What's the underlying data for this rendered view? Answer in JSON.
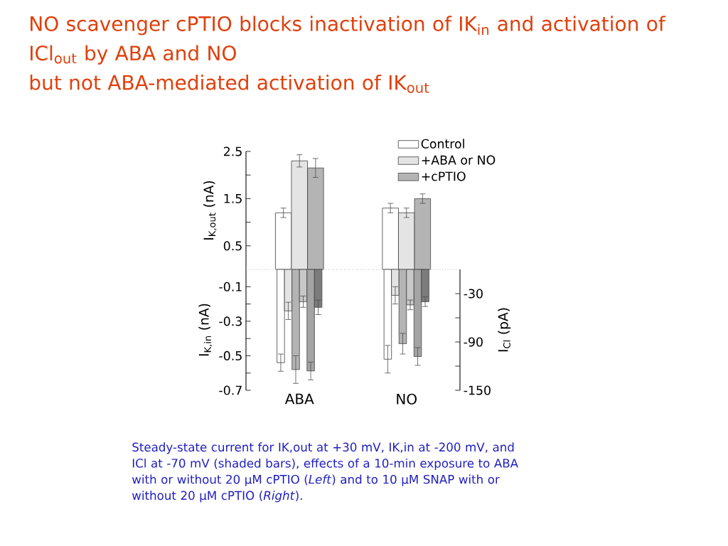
{
  "chart_data": [
    {
      "type": "bar",
      "title": "NO scavenger cPTIO blocks inactivation of IK$_{in}$ and activation of ICl$_{out}$ by ABA and NO",
      "subtitle": "but not ABA-mediated activation of IK$_{out}$",
      "annotations": [
        "Steady-state current for IK,out at +30 mV, IK,in at -200 mV, and ICl at -70 mV (shaded bars), effects of a 10-min exposure to ABA with or without 20 μM cPTIO (*Left*) and to 10 μM SNAP with or without 20 μM cPTIO (*Right*)."
      ],
      "categories": [
        null,
        null
      ],
      "tick_labels": "y",
      "ylabel": "I$_{K,out}$ (nA)",
      "ylim": [
        0,
        2.5
      ],
      "yticks": [
        0.5,
        {
          "value": 1.0,
          "label": null
        },
        1.5,
        {
          "value": 2.0,
          "label": null
        },
        2.5
      ],
      "legend": "top right",
      "series": [
        {
          "name": "Control",
          "color": "#ffffff",
          "values": [
            1.2,
            1.3
          ],
          "errors": [
            0.1,
            0.1
          ]
        },
        {
          "name": "+ABA or NO",
          "color": "#e4e4e4",
          "values": [
            2.3,
            1.2
          ],
          "errors": [
            0.13,
            0.1
          ]
        },
        {
          "name": "+cPTIO",
          "color": "#b4b4b4",
          "values": [
            2.15,
            1.5
          ],
          "errors": [
            0.2,
            0.1
          ]
        }
      ]
    },
    {
      "type": "bar",
      "categories": [
        "ABA",
        "NO"
      ],
      "ylabel": "I$_{K,in}$ (nA)",
      "y2label": "I$_{Cl}$ (pA)",
      "ylim": [
        -0.7,
        0
      ],
      "yticks": [
        -0.1,
        {
          "value": -0.2,
          "label": null
        },
        -0.3,
        {
          "value": -0.4,
          "label": null
        },
        -0.5,
        {
          "value": -0.6,
          "label": null
        },
        -0.7
      ],
      "y2lim": [
        -150,
        0
      ],
      "y2ticks": [
        -30,
        {
          "value": -60,
          "label": null
        },
        -90,
        {
          "value": -120,
          "label": null
        },
        -150
      ],
      "ref_lines": [
        {
          "axis": "y",
          "value": 0,
          "color": "#bbbbbb",
          "line_style": "dotted"
        }
      ],
      "series": [
        {
          "color": "#ffffff",
          "values": [
            -0.54,
            -0.52
          ],
          "errors": [
            0.05,
            0.08
          ]
        },
        {
          "color": "#e4e4e4",
          "values": [
            -0.24,
            -0.15
          ],
          "errors": [
            0.05,
            0.05
          ]
        },
        {
          "color": "#b4b4b4",
          "values": [
            -0.58,
            -0.43
          ],
          "errors": [
            0.08,
            0.06
          ]
        },
        {
          "color": "#c8c8c8",
          "axis": "y2",
          "values": [
            -40,
            -44
          ],
          "errors": [
            7,
            6
          ]
        },
        {
          "color": "#a4a4a4",
          "axis": "y2",
          "values": [
            -126,
            -108
          ],
          "errors": [
            11,
            11
          ]
        },
        {
          "color": "#7c7c7c",
          "axis": "y2",
          "values": [
            -47,
            -40
          ],
          "errors": [
            9,
            6
          ]
        }
      ]
    }
  ]
}
